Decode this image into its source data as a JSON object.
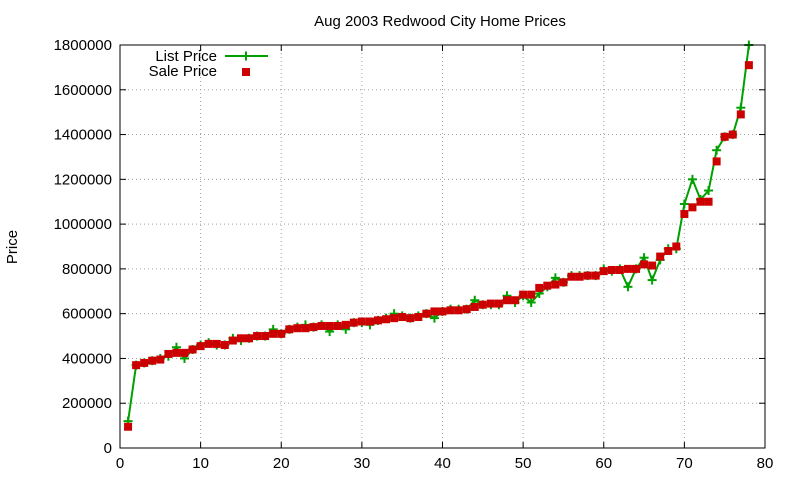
{
  "chart_data": {
    "type": "line",
    "title": "Aug 2003 Redwood City Home Prices",
    "xlabel": "",
    "ylabel": "Price",
    "xlim": [
      0,
      80
    ],
    "ylim": [
      0,
      1800000
    ],
    "x_ticks": [
      "0",
      "10",
      "20",
      "30",
      "40",
      "50",
      "60",
      "70",
      "80"
    ],
    "y_ticks": [
      "0",
      "200000",
      "400000",
      "600000",
      "800000",
      "1000000",
      "1200000",
      "1400000",
      "1600000",
      "1800000"
    ],
    "grid": true,
    "legend_position": "top-left",
    "x": [
      1,
      2,
      3,
      4,
      5,
      6,
      7,
      8,
      9,
      10,
      11,
      12,
      13,
      14,
      15,
      16,
      17,
      18,
      19,
      20,
      21,
      22,
      23,
      24,
      25,
      26,
      27,
      28,
      29,
      30,
      31,
      32,
      33,
      34,
      35,
      36,
      37,
      38,
      39,
      40,
      41,
      42,
      43,
      44,
      45,
      46,
      47,
      48,
      49,
      50,
      51,
      52,
      53,
      54,
      55,
      56,
      57,
      58,
      59,
      60,
      61,
      62,
      63,
      64,
      65,
      66,
      67,
      68,
      69,
      70,
      71,
      72,
      73,
      74,
      75,
      76,
      77,
      78
    ],
    "series": [
      {
        "name": "List Price",
        "color": "#00a000",
        "marker": "plus",
        "values": [
          120000,
          370000,
          380000,
          390000,
          400000,
          410000,
          450000,
          400000,
          440000,
          460000,
          470000,
          460000,
          460000,
          490000,
          480000,
          490000,
          500000,
          500000,
          530000,
          510000,
          530000,
          540000,
          550000,
          540000,
          550000,
          520000,
          550000,
          530000,
          560000,
          560000,
          550000,
          570000,
          580000,
          600000,
          590000,
          580000,
          590000,
          600000,
          580000,
          610000,
          620000,
          620000,
          620000,
          660000,
          640000,
          640000,
          640000,
          680000,
          650000,
          680000,
          650000,
          690000,
          720000,
          760000,
          740000,
          770000,
          770000,
          770000,
          770000,
          800000,
          790000,
          800000,
          720000,
          800000,
          850000,
          750000,
          840000,
          890000,
          890000,
          1090000,
          1200000,
          1110000,
          1150000,
          1330000,
          1390000,
          1400000,
          1520000,
          1800000
        ]
      },
      {
        "name": "Sale Price",
        "color": "#cc0000",
        "marker": "square",
        "values": [
          95000,
          370000,
          380000,
          390000,
          395000,
          420000,
          425000,
          425000,
          440000,
          455000,
          465000,
          465000,
          460000,
          480000,
          490000,
          490000,
          500000,
          500000,
          510000,
          510000,
          530000,
          535000,
          535000,
          540000,
          545000,
          545000,
          545000,
          550000,
          560000,
          565000,
          565000,
          570000,
          575000,
          580000,
          585000,
          580000,
          585000,
          600000,
          610000,
          610000,
          615000,
          615000,
          620000,
          630000,
          640000,
          645000,
          645000,
          660000,
          660000,
          685000,
          685000,
          715000,
          725000,
          730000,
          740000,
          765000,
          765000,
          770000,
          770000,
          790000,
          795000,
          795000,
          800000,
          800000,
          820000,
          815000,
          855000,
          880000,
          900000,
          1045000,
          1075000,
          1100000,
          1100000,
          1280000,
          1390000,
          1400000,
          1490000,
          1710000
        ]
      }
    ]
  }
}
